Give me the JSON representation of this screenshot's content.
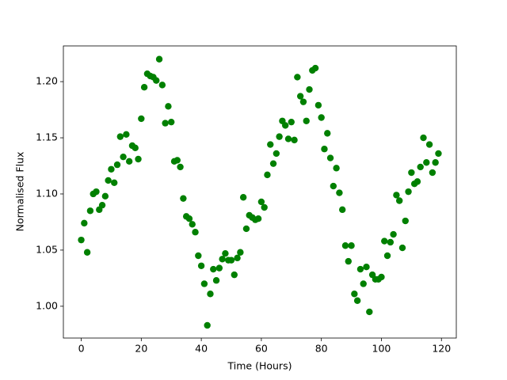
{
  "chart_data": {
    "type": "scatter",
    "x_label": "Time (Hours)",
    "y_label": "Normalised Flux",
    "series": [
      {
        "color": "#008000",
        "x": [
          0,
          1,
          2,
          3,
          4,
          5,
          6,
          7,
          8,
          9,
          10,
          11,
          12,
          13,
          14,
          15,
          16,
          17,
          18,
          19,
          20,
          21,
          22,
          23,
          24,
          25,
          26,
          27,
          28,
          29,
          30,
          31,
          32,
          33,
          34,
          35,
          36,
          37,
          38,
          39,
          40,
          41,
          42,
          43,
          44,
          45,
          46,
          47,
          48,
          49,
          50,
          51,
          52,
          53,
          54,
          55,
          56,
          57,
          58,
          59,
          60,
          61,
          62,
          63,
          64,
          65,
          66,
          67,
          68,
          69,
          70,
          71,
          72,
          73,
          74,
          75,
          76,
          77,
          78,
          79,
          80,
          81,
          82,
          83,
          84,
          85,
          86,
          87,
          88,
          89,
          90,
          91,
          92,
          93,
          94,
          95,
          96,
          97,
          98,
          99,
          100,
          101,
          102,
          103,
          104,
          105,
          106,
          107,
          108,
          109,
          110,
          111,
          112,
          113,
          114,
          115,
          116,
          117,
          118,
          119
        ],
        "values": [
          1.059,
          1.074,
          1.048,
          1.085,
          1.1,
          1.102,
          1.086,
          1.09,
          1.098,
          1.112,
          1.122,
          1.11,
          1.126,
          1.151,
          1.133,
          1.153,
          1.129,
          1.143,
          1.141,
          1.131,
          1.167,
          1.195,
          1.207,
          1.205,
          1.204,
          1.201,
          1.22,
          1.197,
          1.163,
          1.178,
          1.164,
          1.129,
          1.13,
          1.124,
          1.096,
          1.08,
          1.078,
          1.073,
          1.066,
          1.045,
          1.036,
          1.02,
          0.983,
          1.011,
          1.033,
          1.023,
          1.034,
          1.042,
          1.047,
          1.041,
          1.041,
          1.028,
          1.043,
          1.048,
          1.097,
          1.069,
          1.081,
          1.079,
          1.077,
          1.078,
          1.093,
          1.088,
          1.117,
          1.144,
          1.127,
          1.136,
          1.151,
          1.165,
          1.161,
          1.149,
          1.164,
          1.148,
          1.204,
          1.187,
          1.182,
          1.165,
          1.193,
          1.21,
          1.212,
          1.179,
          1.168,
          1.14,
          1.154,
          1.132,
          1.107,
          1.123,
          1.101,
          1.086,
          1.054,
          1.04,
          1.054,
          1.011,
          1.005,
          1.033,
          1.02,
          1.035,
          0.995,
          1.028,
          1.024,
          1.024,
          1.026,
          1.058,
          1.045,
          1.057,
          1.064,
          1.099,
          1.094,
          1.052,
          1.076,
          1.102,
          1.119,
          1.109,
          1.111,
          1.124,
          1.15,
          1.128,
          1.144,
          1.119,
          1.128,
          1.136
        ]
      }
    ],
    "xlim": [
      -5.95,
      124.95
    ],
    "xticks": [
      0,
      20,
      40,
      60,
      80,
      100,
      120
    ],
    "ylim": [
      0.9717,
      1.2318
    ],
    "yticks": [
      {
        "value": 1.0,
        "label": "1.00"
      },
      1.05,
      {
        "value": 1.1,
        "label": "1.10"
      },
      1.15,
      {
        "value": 1.2,
        "label": "1.20"
      }
    ],
    "grid": false
  }
}
